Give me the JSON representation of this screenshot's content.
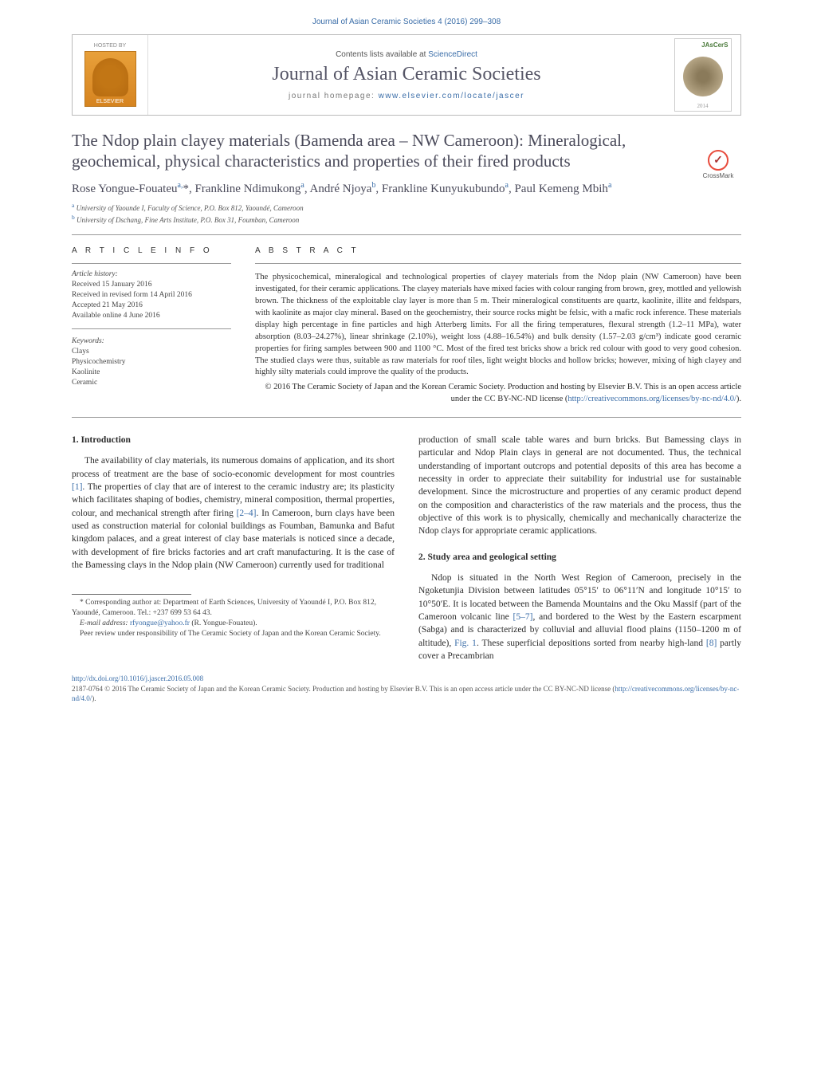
{
  "header_ref": "Journal of Asian Ceramic Societies 4 (2016) 299–308",
  "banner": {
    "hosted_by": "HOSTED BY",
    "elsevier": "ELSEVIER",
    "contents_text": "Contents lists available at ",
    "contents_link": "ScienceDirect",
    "journal_title": "Journal of Asian Ceramic Societies",
    "homepage_label": "journal homepage: ",
    "homepage_url": "www.elsevier.com/locate/jascer",
    "cover_label": "JAsCerS",
    "cover_year": "2014"
  },
  "crossmark": "CrossMark",
  "title": "The Ndop plain clayey materials (Bamenda area – NW Cameroon): Mineralogical, geochemical, physical characteristics and properties of their fired products",
  "authors_html": "Rose Yongue-Fouateu<sup>a,</sup>*, Frankline Ndimukong<sup>a</sup>, André Njoya<sup>b</sup>, Frankline Kunyukubundo<sup>a</sup>, Paul Kemeng Mbih<sup>a</sup>",
  "affiliations": [
    {
      "sup": "a",
      "text": "University of Yaounde I, Faculty of Science, P.O. Box 812, Yaoundé, Cameroon"
    },
    {
      "sup": "b",
      "text": "University of Dschang, Fine Arts Institute, P.O. Box 31, Foumban, Cameroon"
    }
  ],
  "info_head": "A R T I C L E   I N F O",
  "abstract_head": "A B S T R A C T",
  "history_head": "Article history:",
  "history": [
    "Received 15 January 2016",
    "Received in revised form 14 April 2016",
    "Accepted 21 May 2016",
    "Available online 4 June 2016"
  ],
  "keywords_head": "Keywords:",
  "keywords": [
    "Clays",
    "Physicochemistry",
    "Kaolinite",
    "Ceramic"
  ],
  "abstract": "The physicochemical, mineralogical and technological properties of clayey materials from the Ndop plain (NW Cameroon) have been investigated, for their ceramic applications. The clayey materials have mixed facies with colour ranging from brown, grey, mottled and yellowish brown. The thickness of the exploitable clay layer is more than 5 m. Their mineralogical constituents are quartz, kaolinite, illite and feldspars, with kaolinite as major clay mineral. Based on the geochemistry, their source rocks might be felsic, with a mafic rock inference. These materials display high percentage in fine particles and high Atterberg limits. For all the firing temperatures, flexural strength (1.2–11 MPa), water absorption (8.03–24.27%), linear shrinkage (2.10%), weight loss (4.88–16.54%) and bulk density (1.57–2.03 g/cm³) indicate good ceramic properties for firing samples between 900 and 1100 °C. Most of the fired test bricks show a brick red colour with good to very good cohesion. The studied clays were thus, suitable as raw materials for roof tiles, light weight blocks and hollow bricks; however, mixing of high clayey and highly silty materials could improve the quality of the products.",
  "copyright": "© 2016 The Ceramic Society of Japan and the Korean Ceramic Society. Production and hosting by Elsevier B.V. This is an open access article under the CC BY-NC-ND license (",
  "license_url": "http://creativecommons.org/licenses/by-nc-nd/4.0/",
  "license_close": ").",
  "sec1_head": "1.  Introduction",
  "sec1_p1a": "The availability of clay materials, its numerous domains of application, and its short process of treatment are the base of socio-economic development for most countries ",
  "ref1": "[1]",
  "sec1_p1b": ". The properties of clay that are of interest to the ceramic industry are; its plasticity which facilitates shaping of bodies, chemistry, mineral composition, thermal properties, colour, and mechanical strength after firing ",
  "ref24": "[2–4]",
  "sec1_p1c": ". In Cameroon, burn clays have been used as construction material for colonial buildings as Foumban, Bamunka and Bafut kingdom palaces, and a great interest of clay base materials is noticed since a decade, with development of fire bricks factories and art craft manufacturing. It is the case of the Bamessing clays in the Ndop plain (NW Cameroon) currently used for traditional",
  "col2_p1": "production of small scale table wares and burn bricks. But Bamessing clays in particular and Ndop Plain clays in general are not documented. Thus, the technical understanding of important outcrops and potential deposits of this area has become a necessity in order to appreciate their suitability for industrial use for sustainable development. Since the microstructure and properties of any ceramic product depend on the composition and characteristics of the raw materials and the process, thus the objective of this work is to physically, chemically and mechanically characterize the Ndop clays for appropriate ceramic applications.",
  "sec2_head": "2.  Study area and geological setting",
  "sec2_p1a": "Ndop is situated in the North West Region of Cameroon, precisely in the Ngoketunjia Division between latitudes 05°15′ to 06°11′N and longitude 10°15′ to 10°50′E. It is located between the Bamenda Mountains and the Oku Massif (part of the Cameroon volcanic line ",
  "ref57": "[5–7]",
  "sec2_p1b": ", and bordered to the West by the Eastern escarpment (Sabga) and is characterized by colluvial and alluvial flood plains (1150–1200 m of altitude), ",
  "fig1": "Fig. 1",
  "sec2_p1c": ". These superficial depositions sorted from nearby high-land ",
  "ref8": "[8]",
  "sec2_p1d": " partly cover a Precambrian",
  "footnote_corr1": "* Corresponding author at: Department of Earth Sciences, University of Yaoundé I, P.O. Box 812, Yaoundé, Cameroon. Tel.: +237 699 53 64 43.",
  "footnote_email_label": "E-mail address: ",
  "footnote_email": "rfyongue@yahoo.fr",
  "footnote_email_tail": " (R. Yongue-Fouateu).",
  "footnote_peer": "Peer review under responsibility of The Ceramic Society of Japan and the Korean Ceramic Society.",
  "footer_doi": "http://dx.doi.org/10.1016/j.jascer.2016.05.008",
  "footer_text": "2187-0764 © 2016 The Ceramic Society of Japan and the Korean Ceramic Society. Production and hosting by Elsevier B.V. This is an open access article under the CC BY-NC-ND license ("
}
